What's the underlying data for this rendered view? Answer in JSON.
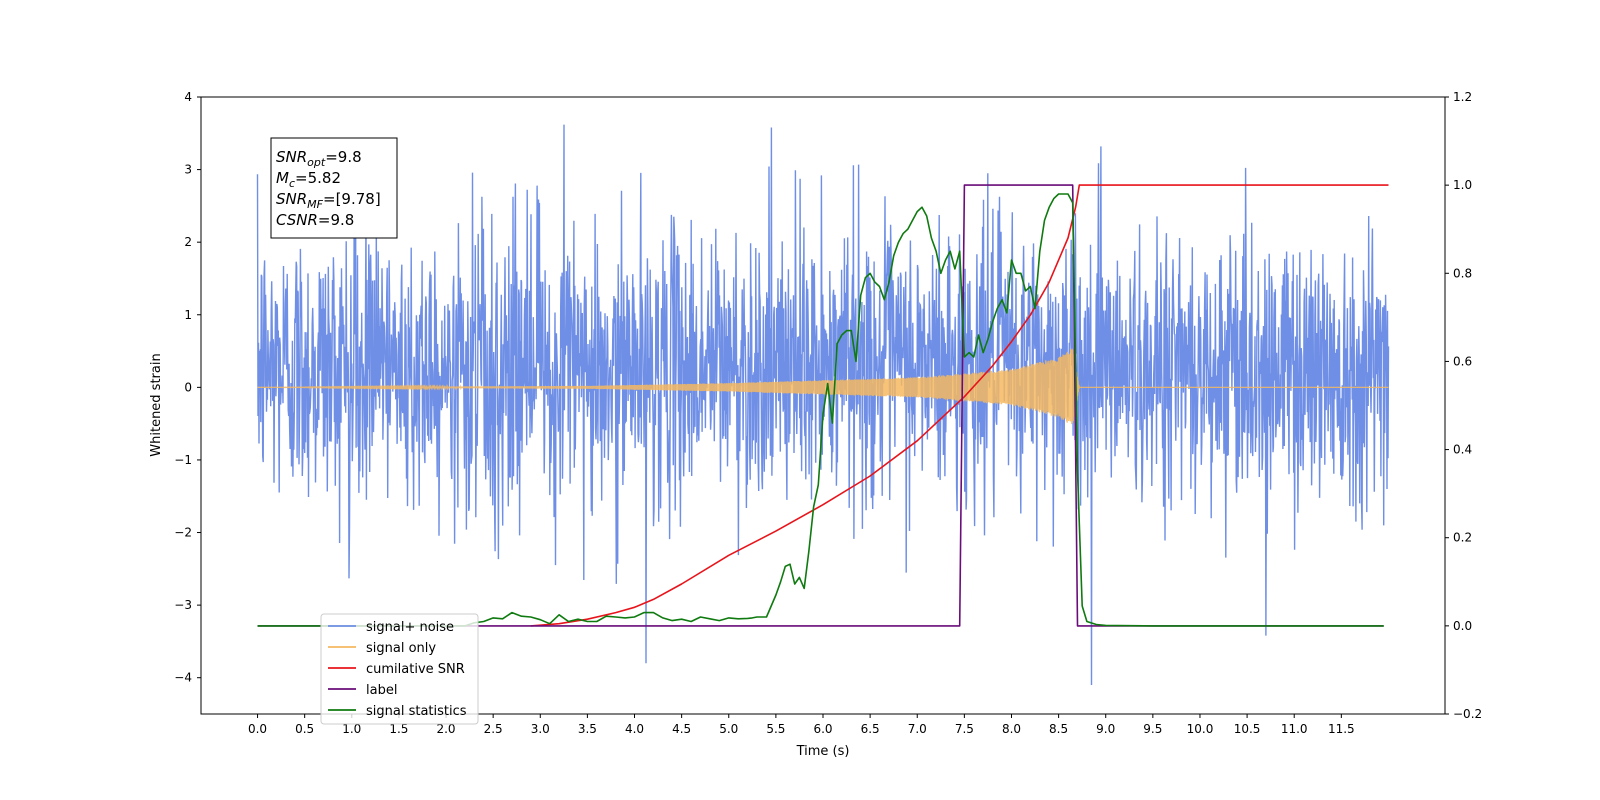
{
  "chart_data": {
    "type": "line",
    "xlabel": "Time (s)",
    "ylabel": "Whitened strain",
    "xlim": [
      -0.6,
      12.6
    ],
    "ylim_left": [
      -4.5,
      4.0
    ],
    "ylim_right": [
      -0.2,
      1.2
    ],
    "x_ticks": [
      0.0,
      0.5,
      1.0,
      1.5,
      2.0,
      2.5,
      3.0,
      3.5,
      4.0,
      4.5,
      5.0,
      5.5,
      6.0,
      6.5,
      7.0,
      7.5,
      8.0,
      8.5,
      9.0,
      9.5,
      10.0,
      10.5,
      11.0,
      11.5
    ],
    "x_tick_labels": [
      "0.0",
      "0.5",
      "1.0",
      "1.5",
      "2.0",
      "2.5",
      "3.0",
      "3.5",
      "4.0",
      "4.5",
      "5.0",
      "5.5",
      "6.0",
      "6.5",
      "7.0",
      "7.5",
      "8.0",
      "8.5",
      "9.0",
      "9.5",
      "10.0",
      "10.5",
      "11.0",
      "11.5"
    ],
    "y_left_ticks": [
      -4,
      -3,
      -2,
      -1,
      0,
      1,
      2,
      3,
      4
    ],
    "y_left_tick_labels": [
      "−4",
      "−3",
      "−2",
      "−1",
      "0",
      "1",
      "2",
      "3",
      "4"
    ],
    "y_right_ticks": [
      -0.2,
      0.0,
      0.2,
      0.4,
      0.6,
      0.8,
      1.0,
      1.2
    ],
    "y_right_tick_labels": [
      "−0.2",
      "0.0",
      "0.2",
      "0.4",
      "0.6",
      "0.8",
      "1.0",
      "1.2"
    ],
    "grid": false,
    "legend_position": "lower-left",
    "annotation": [
      {
        "var": "SNR",
        "sub": "opt",
        "value": "=9.8"
      },
      {
        "var": "M",
        "sub": "c",
        "value": "=5.82"
      },
      {
        "var": "SNR",
        "sub": "MF",
        "value": "=[9.78]"
      },
      {
        "var": "CSNR",
        "sub": "",
        "value": "=9.8"
      }
    ],
    "series": [
      {
        "name": "signal+ noise",
        "color": "#6f8fe6",
        "axis": "left",
        "kind": "noise_band",
        "x_start": 0.0,
        "x_end": 12.0,
        "band_mean": 0.3,
        "band_std": 0.95,
        "notable_peaks": [
          [
            3.25,
            3.62
          ],
          [
            5.45,
            3.58
          ],
          [
            7.75,
            2.95
          ],
          [
            8.95,
            3.32
          ],
          [
            4.12,
            -3.8
          ],
          [
            8.85,
            -4.1
          ],
          [
            10.7,
            -3.42
          ]
        ]
      },
      {
        "name": "signal only",
        "color": "#f5b860",
        "axis": "left",
        "kind": "chirp",
        "x_start": 0.0,
        "x_end": 12.0,
        "merger_time": 8.7,
        "amplitude_profile": [
          [
            0.0,
            0.0
          ],
          [
            3.5,
            0.02
          ],
          [
            5.0,
            0.06
          ],
          [
            7.0,
            0.14
          ],
          [
            8.0,
            0.25
          ],
          [
            8.5,
            0.42
          ],
          [
            8.65,
            0.55
          ],
          [
            8.72,
            0.0
          ]
        ]
      },
      {
        "name": "cumilative SNR",
        "color": "#e8141b",
        "axis": "right",
        "x": [
          2.9,
          3.2,
          3.5,
          3.8,
          4.0,
          4.2,
          4.5,
          5.0,
          5.5,
          6.0,
          6.5,
          7.0,
          7.5,
          7.8,
          8.0,
          8.2,
          8.4,
          8.6,
          8.68,
          8.72,
          12.0
        ],
        "y": [
          0.0,
          0.005,
          0.015,
          0.03,
          0.042,
          0.06,
          0.095,
          0.16,
          0.215,
          0.275,
          0.34,
          0.42,
          0.52,
          0.59,
          0.645,
          0.705,
          0.78,
          0.88,
          0.95,
          1.0,
          1.0
        ]
      },
      {
        "name": "label",
        "color": "#6a0d7a",
        "axis": "right",
        "x": [
          0.0,
          7.45,
          7.5,
          8.65,
          8.7,
          11.95
        ],
        "y": [
          0.0,
          0.0,
          1.0,
          1.0,
          0.0,
          0.0
        ]
      },
      {
        "name": "signal statistics",
        "color": "#0f7a0f",
        "axis": "right",
        "x": [
          0.0,
          2.2,
          2.3,
          2.4,
          2.5,
          2.6,
          2.7,
          2.8,
          2.9,
          3.0,
          3.1,
          3.2,
          3.3,
          3.4,
          3.5,
          3.6,
          3.7,
          3.8,
          3.9,
          4.0,
          4.1,
          4.2,
          4.3,
          4.4,
          4.5,
          4.6,
          4.7,
          4.8,
          4.9,
          5.0,
          5.1,
          5.2,
          5.25,
          5.3,
          5.35,
          5.4,
          5.5,
          5.55,
          5.6,
          5.65,
          5.7,
          5.75,
          5.8,
          5.85,
          5.9,
          5.95,
          6.0,
          6.05,
          6.1,
          6.15,
          6.2,
          6.25,
          6.3,
          6.35,
          6.4,
          6.45,
          6.5,
          6.55,
          6.6,
          6.65,
          6.7,
          6.75,
          6.8,
          6.85,
          6.9,
          6.95,
          7.0,
          7.05,
          7.1,
          7.15,
          7.2,
          7.25,
          7.3,
          7.35,
          7.4,
          7.45,
          7.5,
          7.55,
          7.6,
          7.65,
          7.7,
          7.75,
          7.8,
          7.85,
          7.9,
          7.95,
          8.0,
          8.05,
          8.1,
          8.15,
          8.2,
          8.25,
          8.3,
          8.35,
          8.4,
          8.45,
          8.5,
          8.55,
          8.6,
          8.65,
          8.7,
          8.75,
          8.8,
          8.9,
          9.0,
          9.5,
          11.95
        ],
        "y": [
          0.0,
          0.0,
          0.007,
          0.01,
          0.018,
          0.016,
          0.03,
          0.022,
          0.02,
          0.014,
          0.005,
          0.025,
          0.01,
          0.015,
          0.01,
          0.01,
          0.022,
          0.02,
          0.018,
          0.02,
          0.03,
          0.03,
          0.018,
          0.012,
          0.015,
          0.01,
          0.02,
          0.016,
          0.012,
          0.018,
          0.016,
          0.017,
          0.018,
          0.02,
          0.02,
          0.02,
          0.07,
          0.1,
          0.135,
          0.14,
          0.095,
          0.11,
          0.085,
          0.17,
          0.27,
          0.32,
          0.48,
          0.55,
          0.46,
          0.64,
          0.66,
          0.67,
          0.67,
          0.6,
          0.75,
          0.79,
          0.8,
          0.78,
          0.77,
          0.74,
          0.78,
          0.84,
          0.87,
          0.89,
          0.9,
          0.92,
          0.94,
          0.95,
          0.93,
          0.88,
          0.85,
          0.8,
          0.83,
          0.85,
          0.81,
          0.85,
          0.61,
          0.62,
          0.61,
          0.66,
          0.62,
          0.65,
          0.69,
          0.72,
          0.74,
          0.71,
          0.83,
          0.8,
          0.8,
          0.76,
          0.77,
          0.72,
          0.85,
          0.92,
          0.95,
          0.97,
          0.98,
          0.98,
          0.98,
          0.96,
          0.35,
          0.045,
          0.01,
          0.003,
          0.001,
          0.0,
          0.0
        ]
      }
    ],
    "legend_entries": [
      {
        "label": "signal+ noise",
        "color": "#6f8fe6"
      },
      {
        "label": "signal only",
        "color": "#f5b860"
      },
      {
        "label": "cumilative SNR",
        "color": "#e8141b"
      },
      {
        "label": "label",
        "color": "#6a0d7a"
      },
      {
        "label": "signal statistics",
        "color": "#0f7a0f"
      }
    ]
  }
}
